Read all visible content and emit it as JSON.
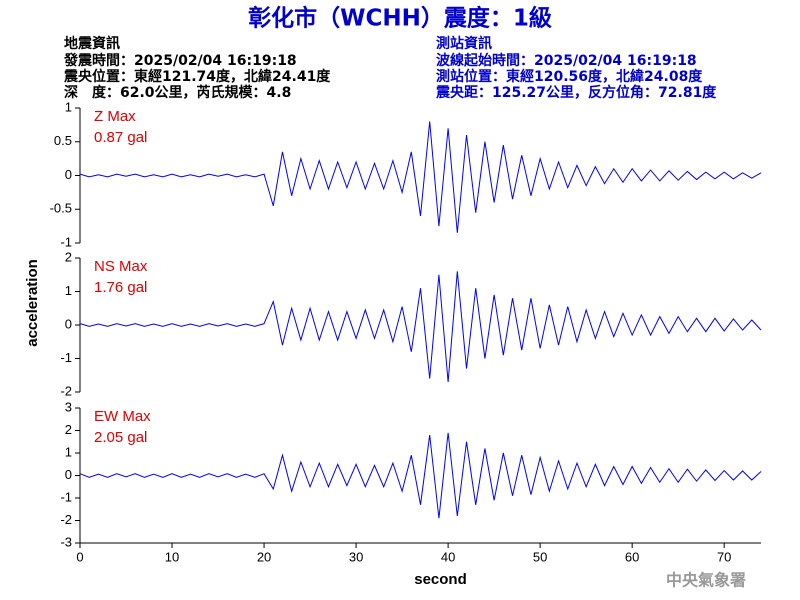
{
  "header": {
    "title": "彰化市（WCHH）震度：1級",
    "left": [
      "地震資訊",
      "發震時間：2025/02/04 16:19:18",
      "震央位置：東經121.74度，北緯24.41度",
      "深　度：62.0公里，芮氏規模：4.8"
    ],
    "right": [
      "測站資訊",
      "波線起始時間：2025/02/04 16:19:18",
      "測站位置：東經120.56度，北緯24.08度",
      "震央距：125.27公里，反方位角：72.81度"
    ],
    "footer": "中央氣象署"
  },
  "chart_data": [
    {
      "type": "line",
      "annotation": [
        "Z Max",
        "0.87 gal"
      ],
      "annotation_color": "#e00000",
      "x": [
        0,
        1,
        2,
        3,
        4,
        5,
        6,
        7,
        8,
        9,
        10,
        11,
        12,
        13,
        14,
        15,
        16,
        17,
        18,
        19,
        20,
        21,
        22,
        23,
        24,
        25,
        26,
        27,
        28,
        29,
        30,
        31,
        32,
        33,
        34,
        35,
        36,
        37,
        38,
        39,
        40,
        41,
        42,
        43,
        44,
        45,
        46,
        47,
        48,
        49,
        50,
        51,
        52,
        53,
        54,
        55,
        56,
        57,
        58,
        59,
        60,
        61,
        62,
        63,
        64,
        65,
        66,
        67,
        68,
        69,
        70,
        71,
        72,
        73,
        74
      ],
      "series": [
        {
          "name": "Z",
          "color": "#0000ff",
          "values": [
            0.02,
            -0.02,
            0.01,
            -0.02,
            0.02,
            -0.01,
            0.02,
            -0.02,
            0.01,
            -0.02,
            0.02,
            -0.02,
            0.01,
            -0.02,
            0.02,
            -0.01,
            0.02,
            -0.02,
            0.01,
            -0.02,
            0.02,
            -0.45,
            0.35,
            -0.3,
            0.25,
            -0.2,
            0.22,
            -0.2,
            0.2,
            -0.18,
            0.2,
            -0.2,
            0.18,
            -0.2,
            0.22,
            -0.25,
            0.35,
            -0.6,
            0.8,
            -0.75,
            0.7,
            -0.85,
            0.6,
            -0.55,
            0.5,
            -0.4,
            0.45,
            -0.35,
            0.3,
            -0.3,
            0.25,
            -0.2,
            0.2,
            -0.18,
            0.15,
            -0.15,
            0.13,
            -0.12,
            0.1,
            -0.1,
            0.1,
            -0.08,
            0.08,
            -0.08,
            0.07,
            -0.07,
            0.06,
            -0.06,
            0.05,
            -0.05,
            0.05,
            -0.05,
            0.04,
            -0.04,
            0.04
          ]
        }
      ],
      "xlim": [
        0,
        74
      ],
      "ylim": [
        -1,
        1
      ],
      "yticks": [
        1,
        0.5,
        0,
        -0.5,
        -1
      ]
    },
    {
      "type": "line",
      "annotation": [
        "NS Max",
        "1.76 gal"
      ],
      "annotation_color": "#e00000",
      "ylabel": "acceleration",
      "x": [
        0,
        1,
        2,
        3,
        4,
        5,
        6,
        7,
        8,
        9,
        10,
        11,
        12,
        13,
        14,
        15,
        16,
        17,
        18,
        19,
        20,
        21,
        22,
        23,
        24,
        25,
        26,
        27,
        28,
        29,
        30,
        31,
        32,
        33,
        34,
        35,
        36,
        37,
        38,
        39,
        40,
        41,
        42,
        43,
        44,
        45,
        46,
        47,
        48,
        49,
        50,
        51,
        52,
        53,
        54,
        55,
        56,
        57,
        58,
        59,
        60,
        61,
        62,
        63,
        64,
        65,
        66,
        67,
        68,
        69,
        70,
        71,
        72,
        73,
        74
      ],
      "series": [
        {
          "name": "NS",
          "color": "#0000ff",
          "values": [
            0.04,
            -0.04,
            0.03,
            -0.04,
            0.04,
            -0.03,
            0.04,
            -0.04,
            0.03,
            -0.04,
            0.04,
            -0.04,
            0.03,
            -0.04,
            0.04,
            -0.03,
            0.04,
            -0.04,
            0.03,
            -0.04,
            0.04,
            0.7,
            -0.6,
            0.5,
            -0.45,
            0.5,
            -0.45,
            0.4,
            -0.45,
            0.4,
            -0.4,
            0.45,
            -0.4,
            0.45,
            -0.5,
            0.55,
            -0.8,
            1.1,
            -1.6,
            1.5,
            -1.7,
            1.6,
            -1.3,
            1.1,
            -1.0,
            0.9,
            -0.9,
            0.8,
            -0.75,
            0.8,
            -0.7,
            0.6,
            -0.6,
            0.55,
            -0.5,
            0.45,
            -0.4,
            0.4,
            -0.35,
            0.35,
            -0.3,
            0.3,
            -0.3,
            0.25,
            -0.25,
            0.25,
            -0.2,
            0.2,
            -0.2,
            0.2,
            -0.18,
            0.18,
            -0.15,
            0.15,
            -0.15
          ]
        }
      ],
      "xlim": [
        0,
        74
      ],
      "ylim": [
        -2,
        2
      ],
      "yticks": [
        2,
        1,
        0,
        -1,
        -2
      ]
    },
    {
      "type": "line",
      "annotation": [
        "EW Max",
        "2.05 gal"
      ],
      "annotation_color": "#e00000",
      "xlabel": "second",
      "x": [
        0,
        1,
        2,
        3,
        4,
        5,
        6,
        7,
        8,
        9,
        10,
        11,
        12,
        13,
        14,
        15,
        16,
        17,
        18,
        19,
        20,
        21,
        22,
        23,
        24,
        25,
        26,
        27,
        28,
        29,
        30,
        31,
        32,
        33,
        34,
        35,
        36,
        37,
        38,
        39,
        40,
        41,
        42,
        43,
        44,
        45,
        46,
        47,
        48,
        49,
        50,
        51,
        52,
        53,
        54,
        55,
        56,
        57,
        58,
        59,
        60,
        61,
        62,
        63,
        64,
        65,
        66,
        67,
        68,
        69,
        70,
        71,
        72,
        73,
        74
      ],
      "series": [
        {
          "name": "EW",
          "color": "#0000ff",
          "values": [
            0.08,
            -0.08,
            0.06,
            -0.08,
            0.08,
            -0.06,
            0.08,
            -0.08,
            0.06,
            -0.08,
            0.08,
            -0.08,
            0.06,
            -0.08,
            0.08,
            -0.06,
            0.08,
            -0.08,
            0.06,
            -0.08,
            0.08,
            -0.6,
            0.9,
            -0.7,
            0.6,
            -0.5,
            0.55,
            -0.5,
            0.5,
            -0.45,
            0.5,
            -0.5,
            0.45,
            -0.5,
            0.55,
            -0.7,
            0.9,
            -1.3,
            1.8,
            -1.9,
            1.9,
            -1.8,
            1.5,
            -1.3,
            1.2,
            -1.1,
            1.0,
            -0.9,
            0.9,
            -0.85,
            0.8,
            -0.7,
            0.65,
            -0.6,
            0.55,
            -0.5,
            0.5,
            -0.45,
            0.4,
            -0.4,
            0.4,
            -0.35,
            0.35,
            -0.3,
            0.3,
            -0.3,
            0.28,
            -0.25,
            0.25,
            -0.22,
            0.22,
            -0.2,
            0.2,
            -0.2,
            0.18
          ]
        }
      ],
      "xlim": [
        0,
        74
      ],
      "ylim": [
        -3,
        3
      ],
      "xticks": [
        0,
        10,
        20,
        30,
        40,
        50,
        60,
        70
      ],
      "yticks": [
        3,
        2,
        1,
        0,
        -1,
        -2,
        -3
      ]
    }
  ]
}
